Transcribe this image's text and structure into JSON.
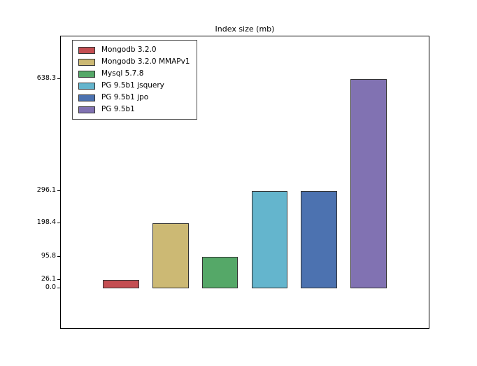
{
  "chart_data": {
    "type": "bar",
    "title": "Index size (mb)",
    "categories": [
      "Mongodb 3.2.0",
      "Mongodb 3.2.0 MMAPv1",
      "Mysql 5.7.8",
      "PG 9.5b1 jsquery",
      "PG 9.5b1 jpo",
      "PG 9.5b1"
    ],
    "values": [
      26.1,
      198.4,
      95.8,
      296.1,
      296.1,
      638.3
    ],
    "bar_colors": [
      "#c44e52",
      "#ccb974",
      "#55a868",
      "#64b5cd",
      "#4c72b0",
      "#8172b2"
    ],
    "bar_edge_color": "#333333",
    "xlabel": "",
    "ylabel": "",
    "yticks": [
      0.0,
      26.1,
      95.8,
      198.4,
      296.1,
      638.3
    ],
    "ytick_labels": [
      "0.0",
      "26.1",
      "95.8",
      "198.4",
      "296.1",
      "638.3"
    ],
    "ylim": [
      -126,
      769
    ],
    "grid": false,
    "background_color": "#ffffff",
    "axes_edge_color": "#000000",
    "legend": {
      "position": "upper left",
      "entries": [
        "Mongodb 3.2.0",
        "Mongodb 3.2.0 MMAPv1",
        "Mysql 5.7.8",
        "PG 9.5b1 jsquery",
        "PG 9.5b1 jpo",
        "PG 9.5b1"
      ]
    }
  }
}
